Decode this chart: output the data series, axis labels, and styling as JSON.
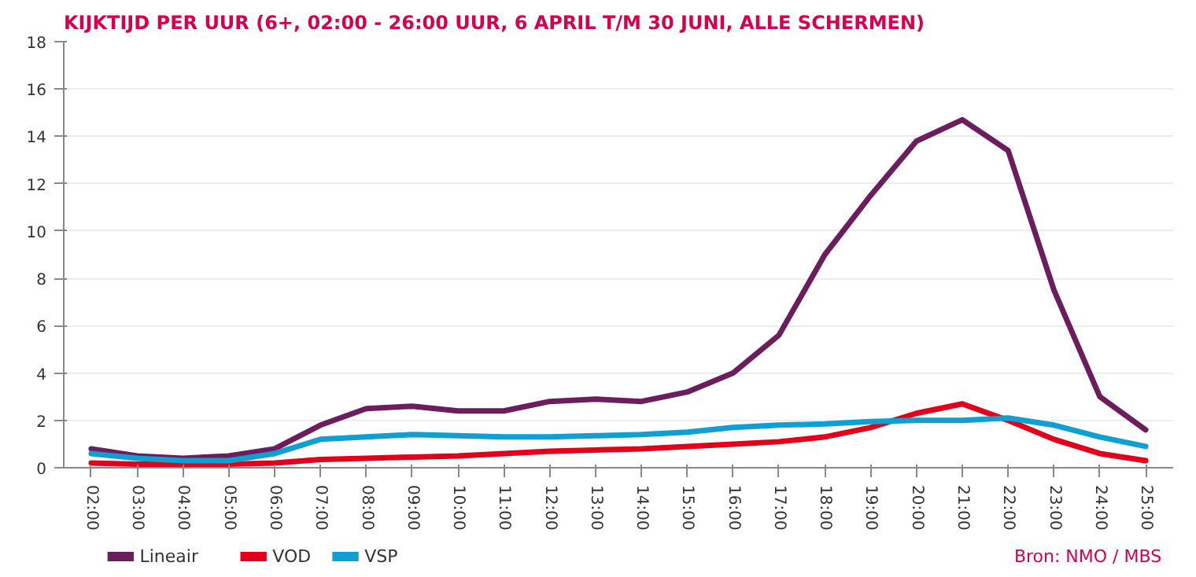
{
  "chart_data": {
    "type": "line",
    "title": "KIJKTIJD PER UUR (6+, 02:00 - 26:00 UUR, 6 APRIL T/M 30 JUNI, ALLE SCHERMEN)",
    "categories": [
      "02:00",
      "03:00",
      "04:00",
      "05:00",
      "06:00",
      "07:00",
      "08:00",
      "09:00",
      "10:00",
      "11:00",
      "12:00",
      "13:00",
      "14:00",
      "15:00",
      "16:00",
      "17:00",
      "18:00",
      "19:00",
      "20:00",
      "21:00",
      "22:00",
      "23:00",
      "24:00",
      "25:00"
    ],
    "series": [
      {
        "name": "Lineair",
        "color": "#6b1d5e",
        "values": [
          0.8,
          0.5,
          0.4,
          0.5,
          0.8,
          1.8,
          2.5,
          2.6,
          2.4,
          2.4,
          2.8,
          2.9,
          2.8,
          3.2,
          4.0,
          5.6,
          9.0,
          11.5,
          13.8,
          14.7,
          13.4,
          7.5,
          3.0,
          1.6
        ]
      },
      {
        "name": "VOD",
        "color": "#e3001b",
        "values": [
          0.2,
          0.15,
          0.15,
          0.15,
          0.2,
          0.35,
          0.4,
          0.45,
          0.5,
          0.6,
          0.7,
          0.75,
          0.8,
          0.9,
          1.0,
          1.1,
          1.3,
          1.7,
          2.3,
          2.7,
          2.0,
          1.2,
          0.6,
          0.3
        ]
      },
      {
        "name": "VSP",
        "color": "#0f9fd0",
        "values": [
          0.6,
          0.4,
          0.3,
          0.3,
          0.6,
          1.2,
          1.3,
          1.4,
          1.35,
          1.3,
          1.3,
          1.35,
          1.4,
          1.5,
          1.7,
          1.8,
          1.85,
          1.95,
          2.0,
          2.0,
          2.1,
          1.8,
          1.3,
          0.9
        ]
      }
    ],
    "ylim": [
      0,
      18
    ],
    "yticks": [
      0,
      2,
      4,
      6,
      8,
      10,
      12,
      14,
      16,
      18
    ],
    "grid": "y",
    "legend": "bottom left",
    "annotations": [
      "Bron: NMO / MBS"
    ]
  }
}
